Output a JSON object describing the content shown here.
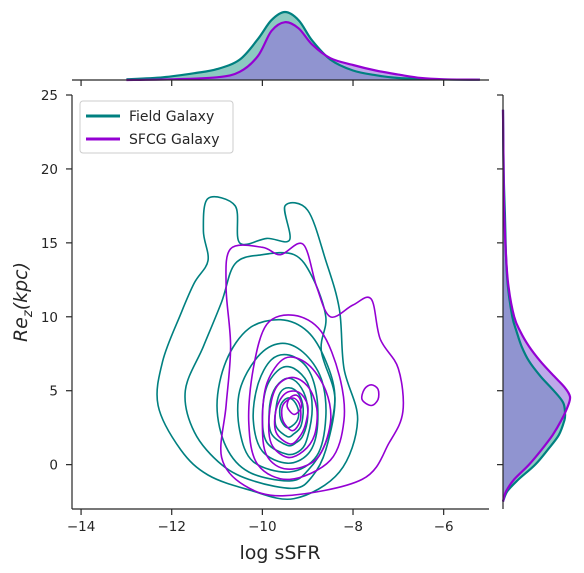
{
  "chart_data": {
    "type": "kde-jointplot",
    "xlabel": "log sSFR",
    "ylabel_main": "Re",
    "ylabel_sub": "z",
    "ylabel_suffix": "(kpc)",
    "xlim": [
      -14.2,
      -5.0
    ],
    "ylim": [
      -3,
      25
    ],
    "xticks": [
      -14,
      -12,
      -10,
      -8,
      -6
    ],
    "xtick_labels": [
      "−14",
      "−12",
      "−10",
      "−8",
      "−6"
    ],
    "yticks": [
      0,
      5,
      10,
      15,
      20,
      25
    ],
    "ytick_labels": [
      "0",
      "5",
      "10",
      "15",
      "20",
      "25"
    ],
    "legend_position": "top-left",
    "series": [
      {
        "name": "Field Galaxy",
        "color": "#008080",
        "contours": [
          [
            [
              -9.3,
              -2.3
            ],
            [
              -10.3,
              -1.7
            ],
            [
              -11.2,
              -0.7
            ],
            [
              -11.8,
              1
            ],
            [
              -12.3,
              4
            ],
            [
              -12.2,
              7
            ],
            [
              -11.8,
              10.2
            ],
            [
              -11.5,
              12.3
            ],
            [
              -11.2,
              13.8
            ],
            [
              -11.3,
              15.8
            ],
            [
              -11.2,
              18
            ],
            [
              -10.6,
              17.5
            ],
            [
              -10.5,
              15
            ],
            [
              -9.9,
              15.3
            ],
            [
              -9.4,
              15.2
            ],
            [
              -9.5,
              17.5
            ],
            [
              -9.0,
              17.2
            ],
            [
              -8.6,
              13.8
            ],
            [
              -8.3,
              10.5
            ],
            [
              -8.2,
              6.5
            ],
            [
              -7.9,
              3
            ],
            [
              -8.3,
              -0.5
            ]
          ],
          [
            [
              -9.3,
              -1.6
            ],
            [
              -10.2,
              -1.1
            ],
            [
              -10.9,
              0
            ],
            [
              -11.5,
              2.2
            ],
            [
              -11.7,
              5
            ],
            [
              -11.3,
              8
            ],
            [
              -10.9,
              11
            ],
            [
              -10.6,
              13.6
            ],
            [
              -10.0,
              14.2
            ],
            [
              -9.3,
              14.2
            ],
            [
              -8.9,
              12.7
            ],
            [
              -8.6,
              10
            ],
            [
              -8.7,
              7.7
            ],
            [
              -8.4,
              4.5
            ],
            [
              -8.6,
              1
            ],
            [
              -8.9,
              -0.8
            ]
          ],
          [
            [
              -9.4,
              -1.1
            ],
            [
              -10.3,
              -0.5
            ],
            [
              -10.8,
              1.2
            ],
            [
              -11.0,
              4
            ],
            [
              -10.8,
              7
            ],
            [
              -10.3,
              9.2
            ],
            [
              -9.6,
              9.8
            ],
            [
              -9.0,
              9
            ],
            [
              -8.6,
              7
            ],
            [
              -8.4,
              4.5
            ],
            [
              -8.6,
              1.5
            ],
            [
              -9.0,
              -0.4
            ]
          ],
          [
            [
              -9.4,
              -0.5
            ],
            [
              -10.2,
              0.2
            ],
            [
              -10.5,
              2.3
            ],
            [
              -10.5,
              5
            ],
            [
              -10.1,
              7.3
            ],
            [
              -9.6,
              8.2
            ],
            [
              -9.1,
              7.6
            ],
            [
              -8.7,
              5.8
            ],
            [
              -8.6,
              3.2
            ],
            [
              -8.8,
              0.6
            ]
          ],
          [
            [
              -9.45,
              0.1
            ],
            [
              -10.0,
              0.9
            ],
            [
              -10.2,
              3
            ],
            [
              -10.1,
              5.4
            ],
            [
              -9.8,
              7.1
            ],
            [
              -9.4,
              7.4
            ],
            [
              -9.0,
              6.5
            ],
            [
              -8.8,
              4.6
            ],
            [
              -8.8,
              2.2
            ],
            [
              -9.0,
              0.7
            ]
          ],
          [
            [
              -9.45,
              0.7
            ],
            [
              -9.9,
              1.5
            ],
            [
              -10.0,
              3.3
            ],
            [
              -9.9,
              5.3
            ],
            [
              -9.6,
              6.5
            ],
            [
              -9.3,
              6.5
            ],
            [
              -9.0,
              5.5
            ],
            [
              -8.9,
              3.8
            ],
            [
              -9.0,
              1.9
            ],
            [
              -9.15,
              1.0
            ]
          ],
          [
            [
              -9.45,
              1.3
            ],
            [
              -9.8,
              2.1
            ],
            [
              -9.85,
              3.6
            ],
            [
              -9.75,
              5
            ],
            [
              -9.5,
              5.8
            ],
            [
              -9.25,
              5.6
            ],
            [
              -9.05,
              4.6
            ],
            [
              -9.0,
              3.2
            ],
            [
              -9.1,
              2.0
            ],
            [
              -9.25,
              1.5
            ]
          ],
          [
            [
              -9.45,
              1.9
            ],
            [
              -9.7,
              2.6
            ],
            [
              -9.7,
              3.8
            ],
            [
              -9.6,
              4.9
            ],
            [
              -9.4,
              5.2
            ],
            [
              -9.2,
              4.8
            ],
            [
              -9.1,
              3.8
            ],
            [
              -9.15,
              2.6
            ],
            [
              -9.3,
              2.1
            ]
          ],
          [
            [
              -9.45,
              2.5
            ],
            [
              -9.6,
              3.1
            ],
            [
              -9.6,
              4.0
            ],
            [
              -9.45,
              4.5
            ],
            [
              -9.3,
              4.3
            ],
            [
              -9.2,
              3.6
            ],
            [
              -9.25,
              2.9
            ]
          ]
        ],
        "top_kde": [
          [
            -13.0,
            0.01
          ],
          [
            -12.2,
            0.04
          ],
          [
            -11.5,
            0.1
          ],
          [
            -11.0,
            0.16
          ],
          [
            -10.5,
            0.3
          ],
          [
            -10.1,
            0.6
          ],
          [
            -9.8,
            0.88
          ],
          [
            -9.5,
            1.0
          ],
          [
            -9.2,
            0.88
          ],
          [
            -8.9,
            0.58
          ],
          [
            -8.5,
            0.3
          ],
          [
            -8.0,
            0.14
          ],
          [
            -7.5,
            0.07
          ],
          [
            -7.0,
            0.03
          ],
          [
            -6.2,
            0.01
          ],
          [
            -5.2,
            0.005
          ]
        ],
        "right_kde": [
          [
            -2.5,
            0.0
          ],
          [
            -1.8,
            0.07
          ],
          [
            -1.0,
            0.25
          ],
          [
            0.0,
            0.52
          ],
          [
            1.0,
            0.72
          ],
          [
            2.0,
            0.9
          ],
          [
            3.0,
            0.99
          ],
          [
            3.5,
            1.0
          ],
          [
            4.2,
            0.97
          ],
          [
            5.0,
            0.82
          ],
          [
            6.0,
            0.6
          ],
          [
            7.0,
            0.42
          ],
          [
            8.0,
            0.3
          ],
          [
            9.0,
            0.22
          ],
          [
            10.0,
            0.15
          ],
          [
            12.0,
            0.08
          ],
          [
            14.0,
            0.05
          ],
          [
            17.0,
            0.03
          ],
          [
            20.0,
            0.01
          ],
          [
            24.0,
            0.0
          ]
        ]
      },
      {
        "name": "SFCG Galaxy",
        "color": "#9400D3",
        "contours": [
          [
            [
              -9.5,
              -2.1
            ],
            [
              -10.4,
              -1.4
            ],
            [
              -10.9,
              0.5
            ],
            [
              -10.8,
              4
            ],
            [
              -10.7,
              8
            ],
            [
              -10.8,
              12
            ],
            [
              -10.7,
              14.6
            ],
            [
              -10.0,
              14.7
            ],
            [
              -9.6,
              14.2
            ],
            [
              -9.1,
              14.9
            ],
            [
              -8.8,
              12
            ],
            [
              -8.5,
              10
            ],
            [
              -8.0,
              10.8
            ],
            [
              -7.6,
              11.2
            ],
            [
              -7.4,
              8.5
            ],
            [
              -7.0,
              6.5
            ],
            [
              -6.9,
              3.6
            ],
            [
              -7.2,
              1.5
            ],
            [
              -7.8,
              -1.0
            ]
          ],
          [
            [
              -9.4,
              -1.0
            ],
            [
              -10.1,
              0
            ],
            [
              -10.3,
              2.8
            ],
            [
              -10.2,
              6.5
            ],
            [
              -9.9,
              9.5
            ],
            [
              -9.3,
              10.1
            ],
            [
              -8.7,
              9
            ],
            [
              -8.3,
              6
            ],
            [
              -8.2,
              3
            ],
            [
              -8.5,
              0.3
            ]
          ],
          [
            [
              -9.45,
              -0.3
            ],
            [
              -9.9,
              0.6
            ],
            [
              -10.0,
              2.8
            ],
            [
              -9.9,
              5.5
            ],
            [
              -9.5,
              7.2
            ],
            [
              -9.0,
              6.8
            ],
            [
              -8.6,
              5
            ],
            [
              -8.5,
              2.8
            ],
            [
              -8.8,
              0.4
            ]
          ],
          [
            [
              -9.45,
              0.5
            ],
            [
              -9.8,
              1.4
            ],
            [
              -9.85,
              3.3
            ],
            [
              -9.7,
              5.2
            ],
            [
              -9.35,
              5.9
            ],
            [
              -9.0,
              5.3
            ],
            [
              -8.8,
              3.8
            ],
            [
              -8.85,
              2.0
            ],
            [
              -9.1,
              0.9
            ]
          ],
          [
            [
              -9.4,
              1.4
            ],
            [
              -9.7,
              2.2
            ],
            [
              -9.7,
              3.7
            ],
            [
              -9.5,
              4.8
            ],
            [
              -9.2,
              4.9
            ],
            [
              -9.0,
              4.0
            ],
            [
              -9.05,
              2.7
            ],
            [
              -9.2,
              1.8
            ]
          ],
          [
            [
              -9.35,
              2.3
            ],
            [
              -9.55,
              3.0
            ],
            [
              -9.55,
              4.0
            ],
            [
              -9.35,
              4.5
            ],
            [
              -9.2,
              4.2
            ],
            [
              -9.15,
              3.4
            ],
            [
              -9.2,
              2.7
            ]
          ],
          [
            [
              -9.3,
              3.4
            ],
            [
              -9.45,
              3.9
            ],
            [
              -9.4,
              4.5
            ],
            [
              -9.25,
              4.7
            ],
            [
              -9.15,
              4.3
            ],
            [
              -9.15,
              3.8
            ]
          ],
          [
            [
              -7.6,
              4.0
            ],
            [
              -7.8,
              4.4
            ],
            [
              -7.75,
              5.1
            ],
            [
              -7.6,
              5.4
            ],
            [
              -7.45,
              5.1
            ],
            [
              -7.45,
              4.4
            ]
          ]
        ],
        "top_kde": [
          [
            -13.0,
            0.0
          ],
          [
            -12.0,
            0.01
          ],
          [
            -11.0,
            0.04
          ],
          [
            -10.5,
            0.12
          ],
          [
            -10.1,
            0.35
          ],
          [
            -9.8,
            0.72
          ],
          [
            -9.5,
            0.85
          ],
          [
            -9.2,
            0.76
          ],
          [
            -8.9,
            0.52
          ],
          [
            -8.5,
            0.32
          ],
          [
            -8.0,
            0.22
          ],
          [
            -7.5,
            0.14
          ],
          [
            -7.0,
            0.08
          ],
          [
            -6.5,
            0.03
          ],
          [
            -6.0,
            0.01
          ],
          [
            -5.2,
            0.005
          ]
        ],
        "right_kde": [
          [
            -2.5,
            0.0
          ],
          [
            -1.8,
            0.05
          ],
          [
            -1.0,
            0.18
          ],
          [
            0.0,
            0.42
          ],
          [
            1.0,
            0.62
          ],
          [
            2.0,
            0.8
          ],
          [
            3.0,
            0.94
          ],
          [
            4.0,
            1.05
          ],
          [
            4.6,
            1.08
          ],
          [
            5.2,
            1.0
          ],
          [
            6.0,
            0.82
          ],
          [
            7.0,
            0.6
          ],
          [
            8.0,
            0.42
          ],
          [
            9.0,
            0.28
          ],
          [
            10.0,
            0.18
          ],
          [
            12.0,
            0.09
          ],
          [
            14.0,
            0.05
          ],
          [
            17.0,
            0.02
          ],
          [
            20.0,
            0.01
          ],
          [
            24.0,
            0.0
          ]
        ]
      }
    ],
    "overlap_fill_color": "#9370DB"
  }
}
